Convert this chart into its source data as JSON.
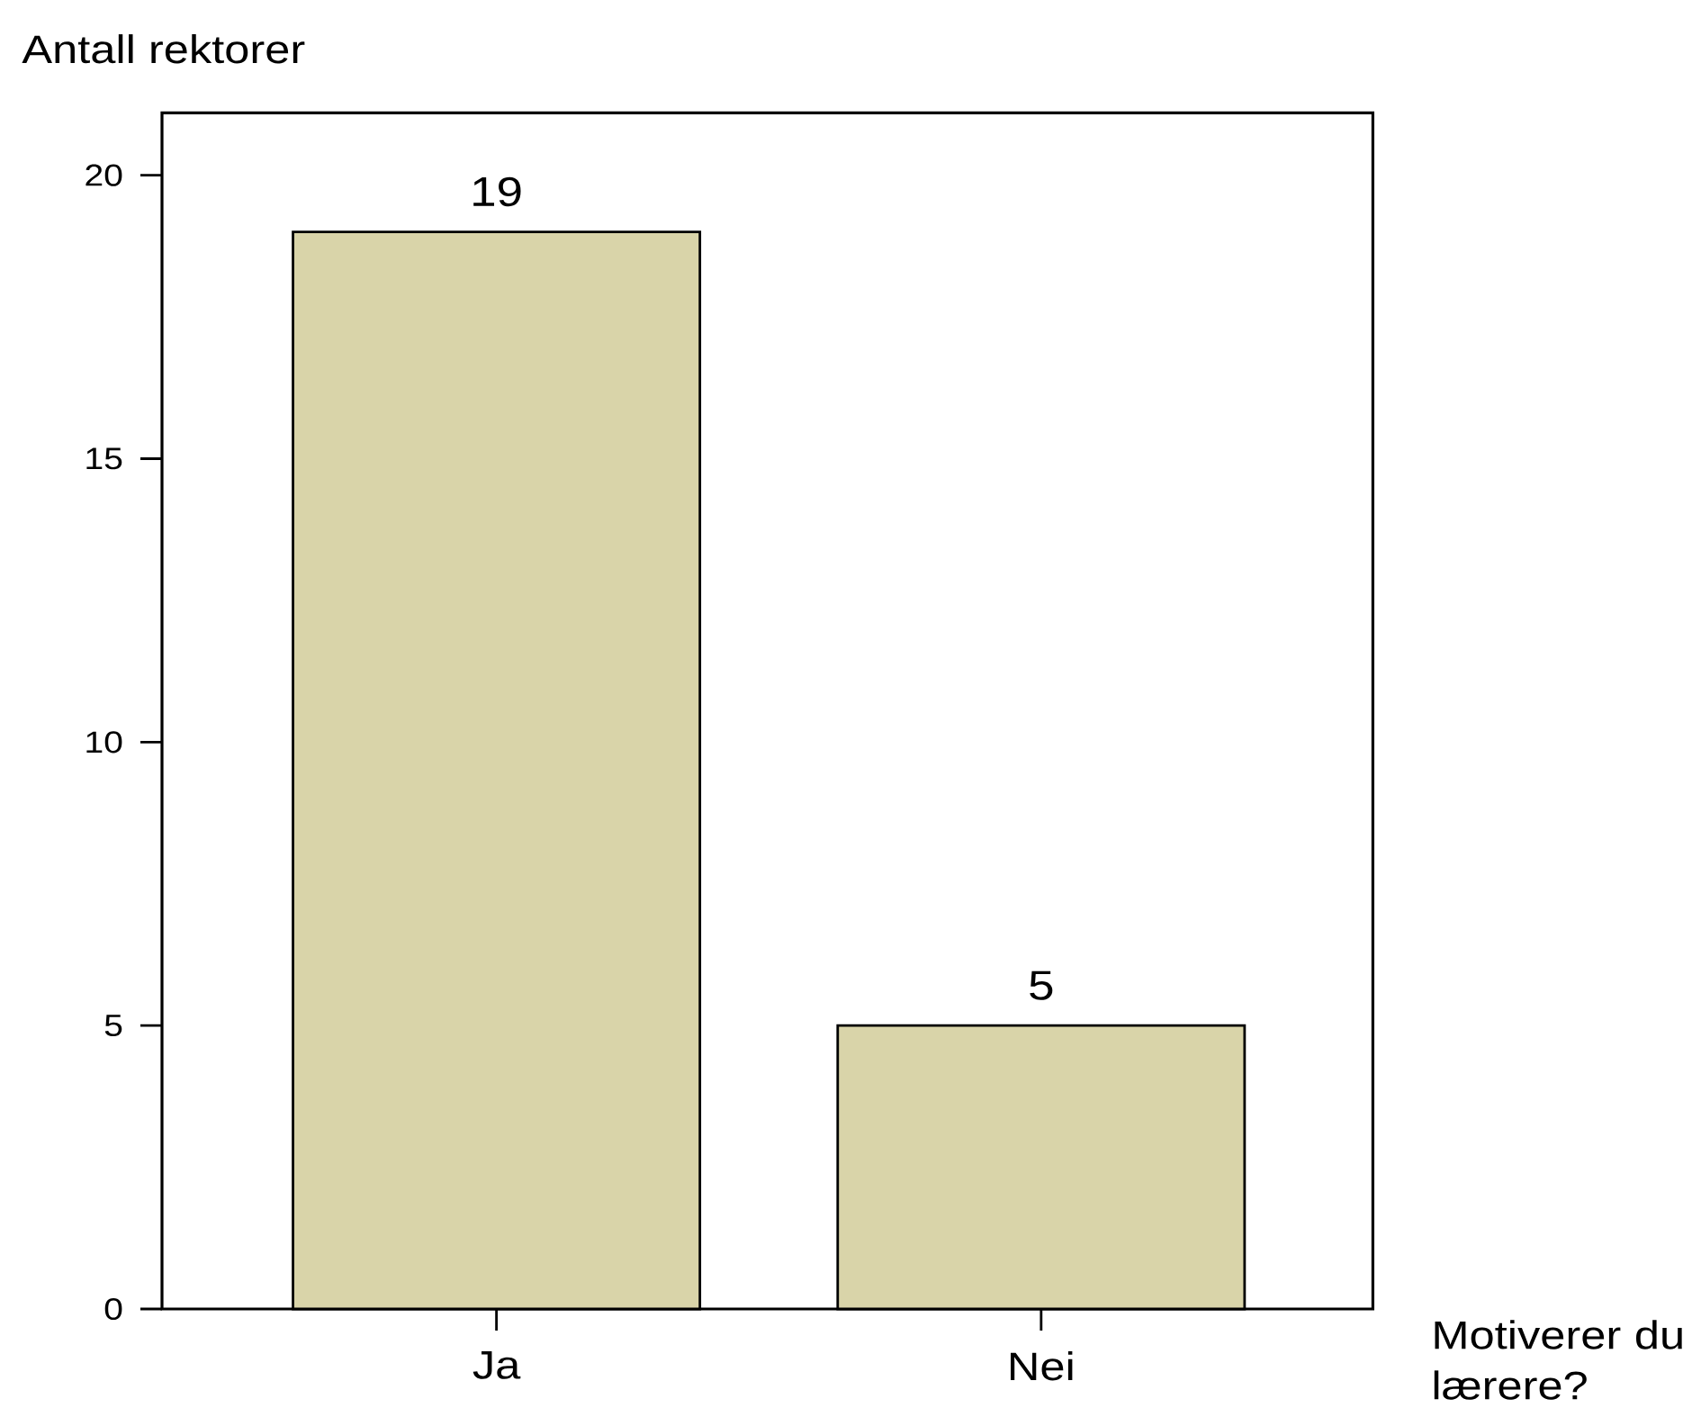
{
  "chart_data": {
    "type": "bar",
    "xlabel": "Motiverer du lærere?",
    "ylabel": "Antall rektorer",
    "categories": [
      "Ja",
      "Nei"
    ],
    "values": [
      19,
      5
    ],
    "color": "#d9d4a9",
    "ylim": [
      0,
      21.1
    ],
    "yticks": [
      0,
      5,
      10,
      15,
      20
    ],
    "data_labels": true
  }
}
